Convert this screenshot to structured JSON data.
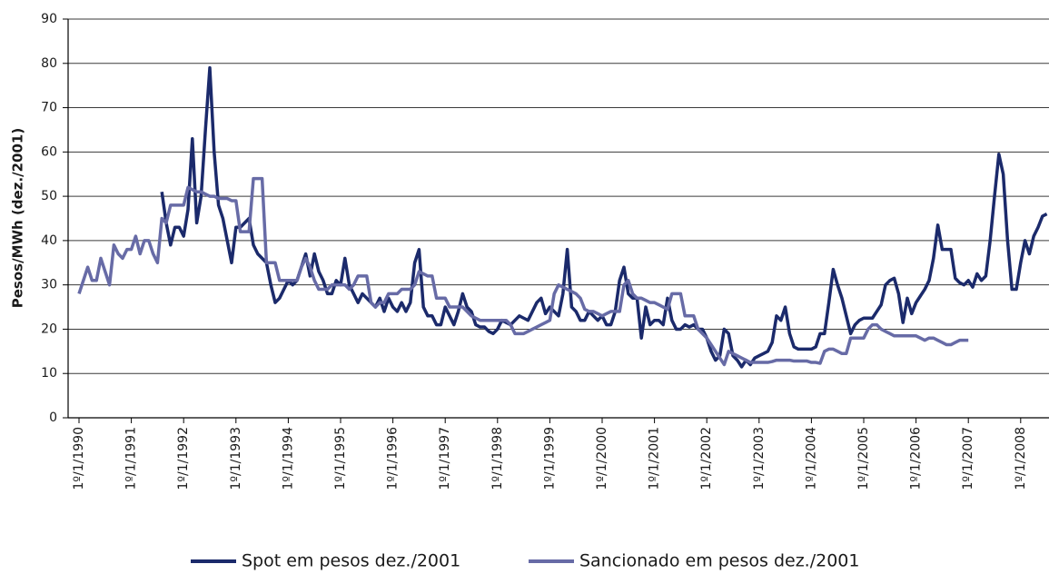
{
  "chart_data": {
    "type": "line",
    "ylabel": "Pesos/MWh (dez./2001)",
    "categories": [
      null,
      null,
      "1º/1/1990",
      null,
      null,
      null,
      null,
      null,
      null,
      null,
      null,
      null,
      null,
      null,
      "1º/1/1991",
      null,
      null,
      null,
      null,
      null,
      null,
      null,
      null,
      null,
      null,
      null,
      "1º/1/1992",
      null,
      null,
      null,
      null,
      null,
      null,
      null,
      null,
      null,
      null,
      null,
      "1º/1/1993",
      null,
      null,
      null,
      null,
      null,
      null,
      null,
      null,
      null,
      null,
      null,
      "1º/1/1994",
      null,
      null,
      null,
      null,
      null,
      null,
      null,
      null,
      null,
      null,
      null,
      "1º/1/1995",
      null,
      null,
      null,
      null,
      null,
      null,
      null,
      null,
      null,
      null,
      null,
      "1º/1/1996",
      null,
      null,
      null,
      null,
      null,
      null,
      null,
      null,
      null,
      null,
      null,
      "1º/1/1997",
      null,
      null,
      null,
      null,
      null,
      null,
      null,
      null,
      null,
      null,
      null,
      "1º/1/1998",
      null,
      null,
      null,
      null,
      null,
      null,
      null,
      null,
      null,
      null,
      null,
      "1º/1/1999",
      null,
      null,
      null,
      null,
      null,
      null,
      null,
      null,
      null,
      null,
      null,
      "1º/1/2000",
      null,
      null,
      null,
      null,
      null,
      null,
      null,
      null,
      null,
      null,
      null,
      "1º/1/2001",
      null,
      null,
      null,
      null,
      null,
      null,
      null,
      null,
      null,
      null,
      null,
      "1º/1/2002",
      null,
      null,
      null,
      null,
      null,
      null,
      null,
      null,
      null,
      null,
      null,
      "1º/1/2003",
      null,
      null,
      null,
      null,
      null,
      null,
      null,
      null,
      null,
      null,
      null,
      "1º/1/2004",
      null,
      null,
      null,
      null,
      null,
      null,
      null,
      null,
      null,
      null,
      null,
      "1º/1/2005",
      null,
      null,
      null,
      null,
      null,
      null,
      null,
      null,
      null,
      null,
      null,
      "1º/1/2006",
      null,
      null,
      null,
      null,
      null,
      null,
      null,
      null,
      null,
      null,
      null,
      "1º/1/2007",
      null,
      null,
      null,
      null,
      null,
      null,
      null,
      null,
      null,
      null,
      null,
      "1º/1/2008",
      null,
      null,
      null,
      null,
      null,
      null
    ],
    "series": [
      {
        "name": "Spot em pesos dez./2001",
        "color": "#1b2a6b",
        "values": [
          null,
          null,
          null,
          null,
          null,
          null,
          null,
          null,
          null,
          null,
          null,
          null,
          null,
          null,
          null,
          null,
          null,
          null,
          null,
          null,
          null,
          51,
          44,
          39,
          43,
          43,
          41,
          47,
          63,
          44,
          50,
          65,
          79,
          60,
          48,
          45,
          40,
          35,
          43,
          43,
          44,
          45,
          39,
          37,
          36,
          35,
          30,
          26,
          27,
          29,
          31,
          30,
          31,
          34,
          37,
          32,
          37,
          33,
          31,
          28,
          28,
          31,
          30,
          36,
          30,
          28,
          26,
          28,
          27,
          26,
          25,
          27,
          24,
          27,
          25,
          24,
          26,
          24,
          26,
          35,
          38,
          25,
          23,
          23,
          21,
          21,
          25,
          23,
          21,
          24,
          28,
          25,
          24,
          21,
          20.5,
          20.5,
          19.5,
          19,
          20,
          22,
          21.5,
          21,
          22,
          23,
          22.5,
          22,
          24,
          26,
          27,
          23.5,
          25,
          24,
          23,
          28,
          38,
          25,
          24,
          22,
          22,
          24,
          23,
          22,
          23,
          21,
          21,
          24,
          31,
          34,
          28,
          27,
          27,
          18,
          25,
          21,
          22,
          22,
          21,
          27,
          22,
          20,
          20,
          21,
          20.5,
          21,
          20,
          20,
          18,
          15,
          13,
          14,
          20,
          19,
          14,
          13,
          11.5,
          13,
          12,
          13.5,
          14,
          14.5,
          15,
          17,
          23,
          22,
          25,
          19,
          16,
          15.5,
          15.5,
          15.5,
          15.5,
          16,
          19,
          19,
          26,
          33.5,
          30,
          27,
          23,
          19,
          21,
          22,
          22.5,
          22.5,
          22.5,
          24,
          25.5,
          30,
          31,
          31.5,
          28,
          21.5,
          27,
          23.5,
          26,
          27.5,
          29,
          31,
          36,
          43.5,
          38,
          38,
          38,
          31.5,
          30.5,
          30,
          31,
          29.5,
          32.5,
          31,
          32,
          40,
          50,
          59.5,
          55,
          40,
          29,
          29,
          35,
          40,
          37,
          41,
          43,
          45.5,
          46
        ]
      },
      {
        "name": "Sancionado em pesos dez./2001",
        "color": "#676ba6",
        "values": [
          null,
          null,
          28,
          31,
          34,
          31,
          31,
          36,
          33,
          30,
          39,
          37,
          36,
          38,
          38,
          41,
          37,
          40,
          40,
          37,
          35,
          45,
          44,
          48,
          48,
          48,
          48,
          52,
          51.5,
          51,
          51,
          50.5,
          50,
          50,
          49.5,
          49.5,
          49.5,
          49,
          49,
          42,
          42,
          42,
          54,
          54,
          54,
          35,
          35,
          35,
          31,
          31,
          31,
          31,
          31,
          34,
          36,
          34,
          31,
          29,
          29,
          29,
          30,
          30,
          30,
          30,
          29,
          30,
          32,
          32,
          32,
          26,
          25,
          26,
          26,
          28,
          28,
          28,
          29,
          29,
          29,
          30,
          33,
          32.5,
          32,
          32,
          27,
          27,
          27,
          25,
          25,
          25,
          25,
          24,
          23,
          22.5,
          22,
          22,
          22,
          22,
          22,
          22,
          22,
          21,
          19,
          19,
          19,
          19.5,
          20,
          20.5,
          21,
          21.5,
          22,
          28,
          30,
          29.5,
          29,
          28.5,
          28,
          27,
          24.5,
          24,
          24,
          23.5,
          23,
          23.5,
          24,
          24,
          24,
          30,
          31,
          28,
          27,
          27,
          26.5,
          26,
          26,
          25.5,
          25,
          24.5,
          28,
          28,
          28,
          23,
          23,
          23,
          20,
          19,
          18,
          16.5,
          15,
          13.5,
          12,
          15,
          14.5,
          14,
          13.5,
          13,
          12.5,
          12.5,
          12.5,
          12.5,
          12.5,
          12.7,
          13,
          13,
          13,
          13,
          12.8,
          12.8,
          12.8,
          12.8,
          12.5,
          12.5,
          12.3,
          15,
          15.5,
          15.5,
          15,
          14.5,
          14.5,
          18,
          18,
          18,
          18,
          20,
          21,
          21,
          20,
          19.5,
          19,
          18.5,
          18.5,
          18.5,
          18.5,
          18.5,
          18.5,
          18,
          17.5,
          18,
          18,
          17.5,
          17,
          16.5,
          16.5,
          17,
          17.5,
          17.5,
          17.5,
          null,
          null,
          null,
          null,
          null,
          null,
          null,
          null,
          null,
          null,
          null,
          null,
          null,
          null,
          null,
          null,
          null,
          null
        ]
      }
    ],
    "ylim": [
      0,
      90
    ],
    "yticks": [
      0,
      10,
      20,
      30,
      40,
      50,
      60,
      70,
      80,
      90
    ],
    "grid": true,
    "legend": "bottom"
  }
}
